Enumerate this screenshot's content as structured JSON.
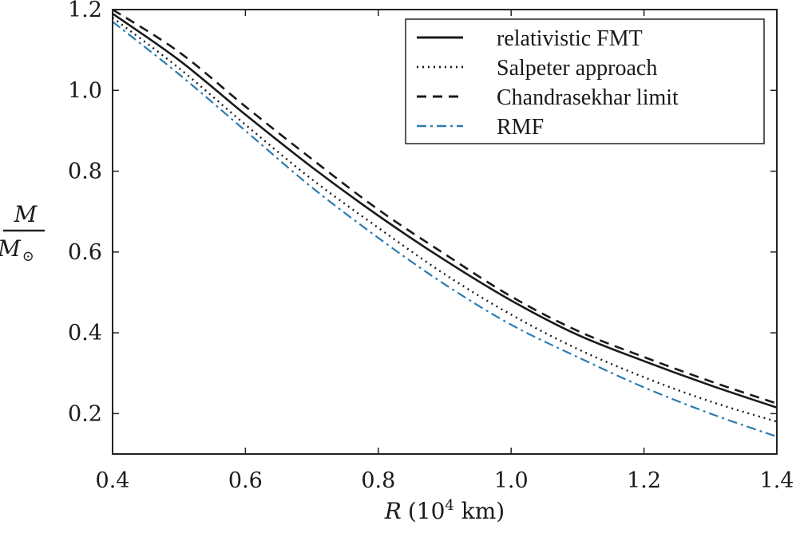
{
  "chart_data": {
    "type": "line",
    "xlabel_var": "R",
    "xlabel_unit_prefix": "(10",
    "xlabel_unit_exp": "4",
    "xlabel_unit_suffix": " km)",
    "ylabel_num": "M",
    "ylabel_den": "M",
    "ylabel_den_sub": "⊙",
    "xlim": [
      0.4,
      1.4
    ],
    "ylim": [
      0.1,
      1.2
    ],
    "xticks": [
      0.4,
      0.6,
      0.8,
      1.0,
      1.2,
      1.4
    ],
    "xtick_labels": [
      "0.4",
      "0.6",
      "0.8",
      "1.0",
      "1.2",
      "1.4"
    ],
    "yticks": [
      0.2,
      0.4,
      0.6,
      0.8,
      1.0,
      1.2
    ],
    "ytick_labels": [
      "0.2",
      "0.4",
      "0.6",
      "0.8",
      "1.0",
      "1.2"
    ],
    "legend_position": "top-right",
    "x": [
      0.4,
      0.5,
      0.6,
      0.7,
      0.8,
      0.9,
      1.0,
      1.1,
      1.2,
      1.3,
      1.4
    ],
    "series": [
      {
        "name": "relativistic FMT",
        "style": "solid",
        "color": "#1a1a1a",
        "values": [
          1.19,
          1.075,
          0.94,
          0.81,
          0.69,
          0.58,
          0.48,
          0.395,
          0.33,
          0.27,
          0.215
        ]
      },
      {
        "name": "Salpeter approach",
        "style": "dotted",
        "color": "#1a1a1a",
        "values": [
          1.18,
          1.055,
          0.915,
          0.78,
          0.66,
          0.545,
          0.445,
          0.36,
          0.29,
          0.23,
          0.18
        ]
      },
      {
        "name": "Chandrasekhar limit",
        "style": "dashed",
        "color": "#1a1a1a",
        "values": [
          1.2,
          1.095,
          0.96,
          0.83,
          0.705,
          0.595,
          0.49,
          0.405,
          0.34,
          0.28,
          0.225
        ]
      },
      {
        "name": "RMF",
        "style": "dashdot",
        "color": "#2b7bb0",
        "values": [
          1.17,
          1.04,
          0.9,
          0.76,
          0.635,
          0.52,
          0.42,
          0.34,
          0.265,
          0.2,
          0.143
        ]
      }
    ]
  }
}
